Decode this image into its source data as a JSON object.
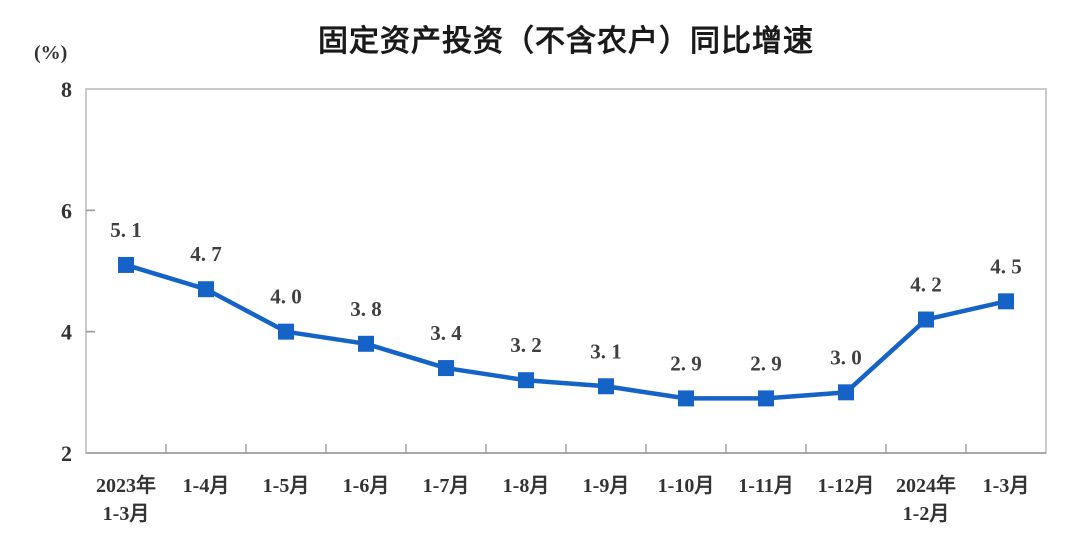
{
  "chart_data": {
    "type": "line",
    "title": "固定资产投资（不含农户）同比增速",
    "unit_label": "(%)",
    "categories": [
      [
        "2023年",
        "1-3月"
      ],
      [
        "1-4月"
      ],
      [
        "1-5月"
      ],
      [
        "1-6月"
      ],
      [
        "1-7月"
      ],
      [
        "1-8月"
      ],
      [
        "1-9月"
      ],
      [
        "1-10月"
      ],
      [
        "1-11月"
      ],
      [
        "1-12月"
      ],
      [
        "2024年",
        "1-2月"
      ],
      [
        "1-3月"
      ]
    ],
    "values": [
      5.1,
      4.7,
      4.0,
      3.8,
      3.4,
      3.2,
      3.1,
      2.9,
      2.9,
      3.0,
      4.2,
      4.5
    ],
    "point_labels": [
      "5. 1",
      "4. 7",
      "4. 0",
      "3. 8",
      "3. 4",
      "3. 2",
      "3. 1",
      "2. 9",
      "2. 9",
      "3. 0",
      "4. 2",
      "4. 5"
    ],
    "ylim": [
      2,
      8
    ],
    "yticks": [
      2,
      4,
      6,
      8
    ],
    "grid": false,
    "legend": "none",
    "marker": "square",
    "colors": {
      "background": "#ffffff",
      "line": "#1663c7",
      "marker_fill": "#1663c7",
      "point_label": "#404040",
      "plot_border": "#bdbdbd",
      "axis_line": "#9a9a9a",
      "tick_label": "#333333",
      "title": "#1a1a1a",
      "unit": "#333333"
    }
  }
}
